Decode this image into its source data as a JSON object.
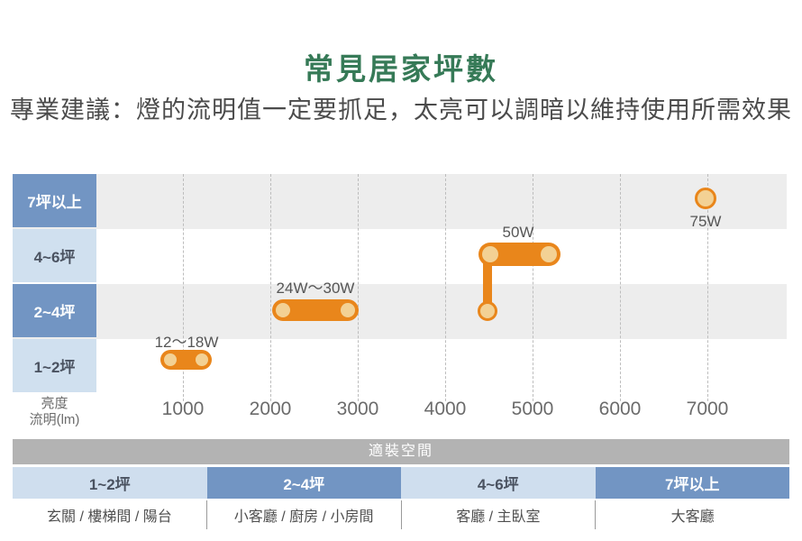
{
  "title": "常見居家坪數",
  "subtitle": "專業建議：燈的流明值一定要抓足，太亮可以調暗以維持使用所需效果",
  "colors": {
    "title_green": "#367a57",
    "orange": "#e9861b",
    "orange_light": "#f3d194",
    "blue_dark": "#7295c3",
    "blue_light": "#d0e0ef",
    "band_gray": "#ededed",
    "table_header_gray": "#b3b3b3"
  },
  "chart": {
    "rows": [
      {
        "label": "7坪以上",
        "variant": "dark"
      },
      {
        "label": "4~6坪",
        "variant": "light"
      },
      {
        "label": "2~4坪",
        "variant": "dark"
      },
      {
        "label": "1~2坪",
        "variant": "light"
      }
    ],
    "axis_label_line1": "亮度",
    "axis_label_line2": "流明(lm)",
    "ticks": [
      "1000",
      "2000",
      "3000",
      "4000",
      "5000",
      "6000",
      "7000"
    ],
    "annotations": {
      "watt_1_2": "12～18W",
      "watt_2_4": "24W～30W",
      "watt_4_6": "50W",
      "watt_7plus": "75W"
    }
  },
  "table": {
    "header": "適裝空間",
    "columns": [
      {
        "size": "1~2坪",
        "spaces": "玄關 / 樓梯間 / 陽台",
        "variant": "light"
      },
      {
        "size": "2~4坪",
        "spaces": "小客廳 / 廚房 / 小房間",
        "variant": "dark"
      },
      {
        "size": "4~6坪",
        "spaces": "客廳 / 主臥室",
        "variant": "light"
      },
      {
        "size": "7坪以上",
        "spaces": "大客廳",
        "variant": "dark"
      }
    ]
  },
  "chart_data": {
    "type": "bar",
    "orientation": "horizontal-range",
    "title": "常見居家坪數",
    "xlabel": "亮度流明(lm)",
    "x_ticks": [
      1000,
      2000,
      3000,
      4000,
      5000,
      6000,
      7000
    ],
    "xlim": [
      0,
      7900
    ],
    "categories": [
      "1~2坪",
      "2~4坪",
      "4~6坪",
      "7坪以上"
    ],
    "series": [
      {
        "category": "1~2坪",
        "lumen_range": [
          750,
          1300
        ],
        "watt_label": "12～18W"
      },
      {
        "category": "2~4坪",
        "lumen_range": [
          2000,
          3000
        ],
        "watt_label": "24W～30W"
      },
      {
        "category": "4~6坪",
        "lumen_range": [
          4500,
          5200
        ],
        "watt_label": "50W",
        "connector_to": {
          "category": "2~4坪",
          "lumen": 4500
        }
      },
      {
        "category": "7坪以上",
        "lumen_point": 7000,
        "watt_label": "75W"
      }
    ],
    "grid": "dashed-vertical",
    "legend": "none",
    "row_suitability": [
      {
        "size": "1~2坪",
        "spaces": "玄關 / 樓梯間 / 陽台"
      },
      {
        "size": "2~4坪",
        "spaces": "小客廳 / 廚房 / 小房間"
      },
      {
        "size": "4~6坪",
        "spaces": "客廳 / 主臥室"
      },
      {
        "size": "7坪以上",
        "spaces": "大客廳"
      }
    ]
  }
}
